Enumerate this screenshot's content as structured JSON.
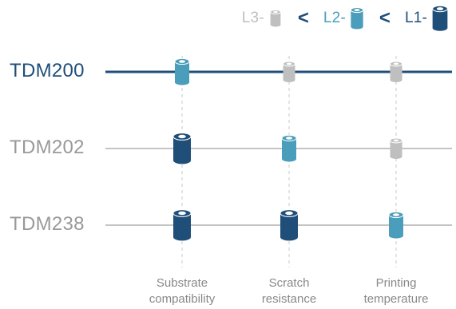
{
  "colors": {
    "L1": "#1f4e79",
    "L2": "#4a9ebb",
    "L3": "#bfbfbf",
    "highlight_row": "#1f4e79",
    "normal_row": "#999999"
  },
  "legend": {
    "items": [
      {
        "label": "L3-",
        "level": "L3"
      },
      {
        "label": "L2-",
        "level": "L2"
      },
      {
        "label": "L1-",
        "level": "L1"
      }
    ],
    "separator": "<"
  },
  "columns": [
    {
      "label": "Substrate\ncompatibility"
    },
    {
      "label": "Scratch\nresistance"
    },
    {
      "label": "Printing\ntemperature"
    }
  ],
  "rows": [
    {
      "label": "TDM200",
      "highlighted": true,
      "levels": [
        "L2",
        "L3",
        "L3"
      ]
    },
    {
      "label": "TDM202",
      "highlighted": false,
      "levels": [
        "L1",
        "L2",
        "L3"
      ]
    },
    {
      "label": "TDM238",
      "highlighted": false,
      "levels": [
        "L1",
        "L1",
        "L2"
      ]
    }
  ]
}
